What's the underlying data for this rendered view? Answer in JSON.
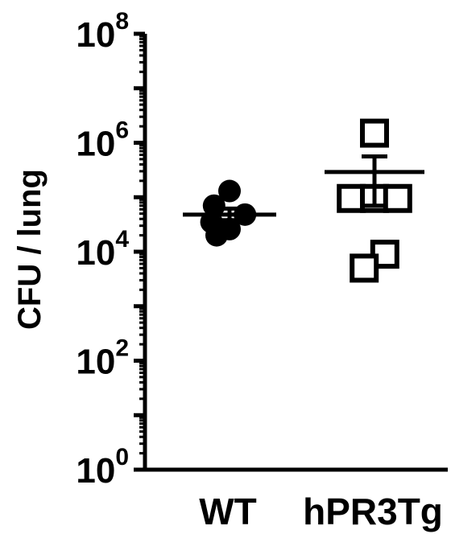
{
  "chart_data": {
    "type": "scatter",
    "ylabel": "CFU / lung",
    "yscale": "log10",
    "ylim": [
      1,
      100000000
    ],
    "yticks": [
      {
        "base": "10",
        "exp": "0",
        "value": 1
      },
      {
        "base": "10",
        "exp": "2",
        "value": 100
      },
      {
        "base": "10",
        "exp": "4",
        "value": 10000
      },
      {
        "base": "10",
        "exp": "6",
        "value": 1000000
      },
      {
        "base": "10",
        "exp": "8",
        "value": 100000000
      }
    ],
    "categories": [
      "WT",
      "hPR3Tg"
    ],
    "series": [
      {
        "category": "WT",
        "marker": "filled-circle",
        "color": "#000000",
        "points": [
          {
            "offset": 0.0,
            "value": 130000
          },
          {
            "offset": -0.6,
            "value": 70000
          },
          {
            "offset": 0.6,
            "value": 48000
          },
          {
            "offset": -0.7,
            "value": 35000
          },
          {
            "offset": 0.0,
            "value": 26000
          },
          {
            "offset": -0.5,
            "value": 20000
          }
        ],
        "mean": 48000,
        "sem_upper": 62000,
        "sem_lower": 38000
      },
      {
        "category": "hPR3Tg",
        "marker": "open-square",
        "color": "#000000",
        "points": [
          {
            "offset": 0.0,
            "value": 1500000
          },
          {
            "offset": -0.9,
            "value": 95000
          },
          {
            "offset": 0.0,
            "value": 95000
          },
          {
            "offset": 0.9,
            "value": 95000
          },
          {
            "offset": 0.4,
            "value": 9000
          },
          {
            "offset": -0.4,
            "value": 5000
          }
        ],
        "mean": 290000,
        "sem_upper": 560000,
        "sem_lower": 70000
      }
    ],
    "grid": false,
    "legend": "none"
  }
}
